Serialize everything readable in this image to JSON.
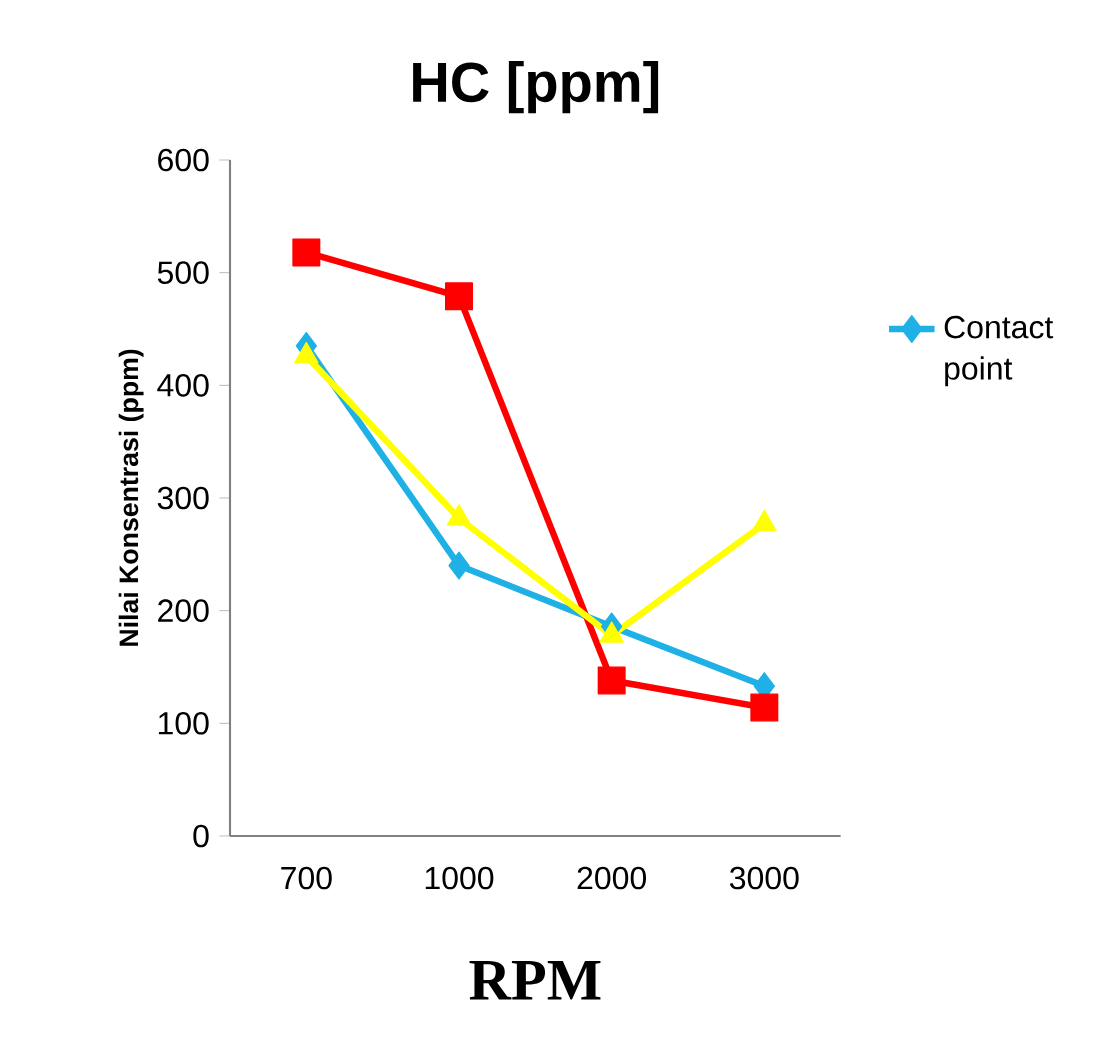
{
  "chart_data": {
    "type": "line",
    "title": "HC [ppm]",
    "xlabel": "RPM",
    "ylabel": "Nilai Konsentrasi (ppm)",
    "categories": [
      "700",
      "1000",
      "2000",
      "3000"
    ],
    "ylim": [
      0,
      600
    ],
    "yticks": [
      0,
      100,
      200,
      300,
      400,
      500,
      600
    ],
    "legend": "right",
    "line_style": "solid",
    "series": [
      {
        "name": "Contact point",
        "color": "#1fb0e6",
        "marker": "diamond",
        "values": [
          435,
          240,
          186,
          133
        ]
      },
      {
        "color": "#ff0000",
        "marker": "square",
        "values": [
          518,
          479,
          138,
          114
        ]
      },
      {
        "color": "#ffff00",
        "marker": "triangle",
        "values": [
          426,
          282,
          178,
          277
        ]
      }
    ]
  }
}
